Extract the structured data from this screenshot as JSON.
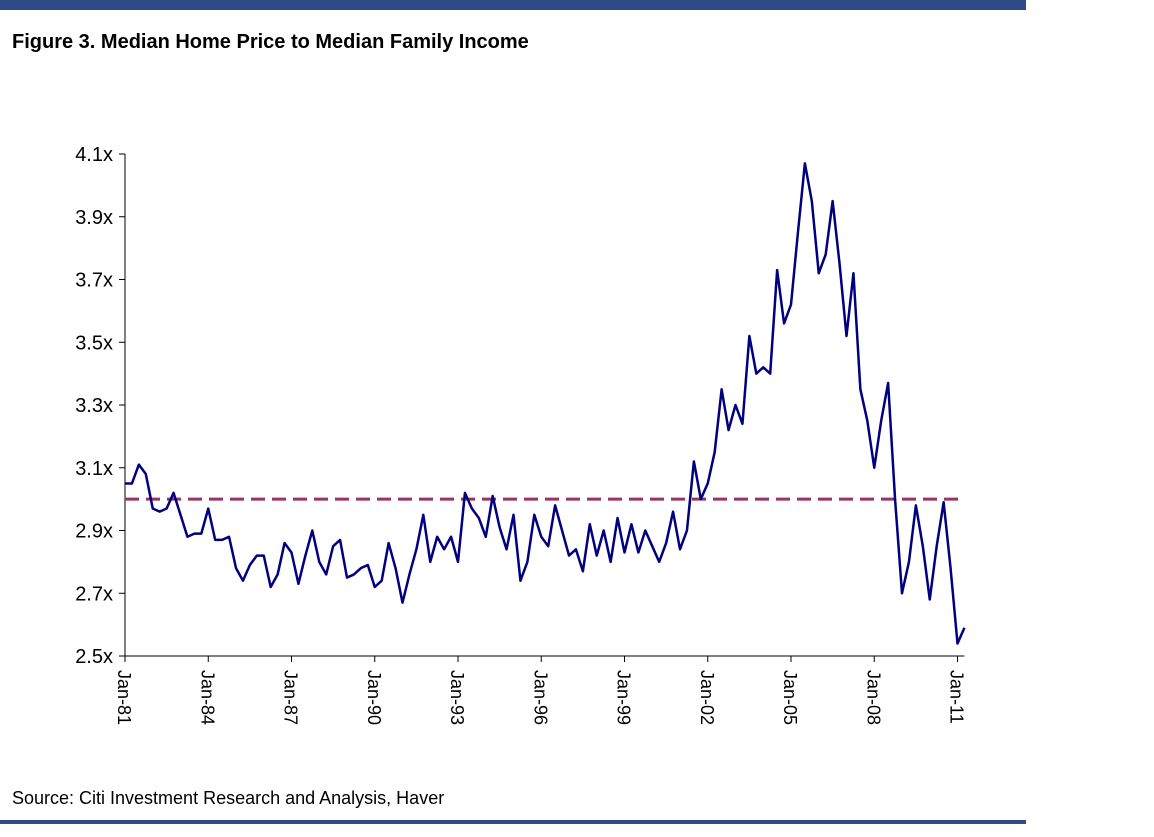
{
  "chart_data": {
    "type": "line",
    "title": "Figure 3. Median Home Price to Median Family Income",
    "source": "Source: Citi Investment Research and Analysis, Haver",
    "x": [
      "1981-01",
      "1981-04",
      "1981-07",
      "1981-10",
      "1982-01",
      "1982-04",
      "1982-07",
      "1982-10",
      "1983-01",
      "1983-04",
      "1983-07",
      "1983-10",
      "1984-01",
      "1984-04",
      "1984-07",
      "1984-10",
      "1985-01",
      "1985-04",
      "1985-07",
      "1985-10",
      "1986-01",
      "1986-04",
      "1986-07",
      "1986-10",
      "1987-01",
      "1987-04",
      "1987-07",
      "1987-10",
      "1988-01",
      "1988-04",
      "1988-07",
      "1988-10",
      "1989-01",
      "1989-04",
      "1989-07",
      "1989-10",
      "1990-01",
      "1990-04",
      "1990-07",
      "1990-10",
      "1991-01",
      "1991-04",
      "1991-07",
      "1991-10",
      "1992-01",
      "1992-04",
      "1992-07",
      "1992-10",
      "1993-01",
      "1993-04",
      "1993-07",
      "1993-10",
      "1994-01",
      "1994-04",
      "1994-07",
      "1994-10",
      "1995-01",
      "1995-04",
      "1995-07",
      "1995-10",
      "1996-01",
      "1996-04",
      "1996-07",
      "1996-10",
      "1997-01",
      "1997-04",
      "1997-07",
      "1997-10",
      "1998-01",
      "1998-04",
      "1998-07",
      "1998-10",
      "1999-01",
      "1999-04",
      "1999-07",
      "1999-10",
      "2000-01",
      "2000-04",
      "2000-07",
      "2000-10",
      "2001-01",
      "2001-04",
      "2001-07",
      "2001-10",
      "2002-01",
      "2002-04",
      "2002-07",
      "2002-10",
      "2003-01",
      "2003-04",
      "2003-07",
      "2003-10",
      "2004-01",
      "2004-04",
      "2004-07",
      "2004-10",
      "2005-01",
      "2005-04",
      "2005-07",
      "2005-10",
      "2006-01",
      "2006-04",
      "2006-07",
      "2006-10",
      "2007-01",
      "2007-04",
      "2007-07",
      "2007-10",
      "2008-01",
      "2008-04",
      "2008-07",
      "2008-10",
      "2009-01",
      "2009-04",
      "2009-07",
      "2009-10",
      "2010-01",
      "2010-04",
      "2010-07",
      "2010-10",
      "2011-01",
      "2011-04"
    ],
    "series": [
      {
        "name": "Median Home Price to Median Family Income",
        "color": "#000080",
        "values": [
          3.05,
          3.05,
          3.11,
          3.08,
          2.97,
          2.96,
          2.97,
          3.02,
          2.95,
          2.88,
          2.89,
          2.89,
          2.97,
          2.87,
          2.87,
          2.88,
          2.78,
          2.74,
          2.79,
          2.82,
          2.82,
          2.72,
          2.76,
          2.86,
          2.83,
          2.73,
          2.82,
          2.9,
          2.8,
          2.76,
          2.85,
          2.87,
          2.75,
          2.76,
          2.78,
          2.79,
          2.72,
          2.74,
          2.86,
          2.78,
          2.67,
          2.76,
          2.84,
          2.95,
          2.8,
          2.88,
          2.84,
          2.88,
          2.8,
          3.02,
          2.97,
          2.94,
          2.88,
          3.01,
          2.91,
          2.84,
          2.95,
          2.74,
          2.8,
          2.95,
          2.88,
          2.85,
          2.98,
          2.9,
          2.82,
          2.84,
          2.77,
          2.92,
          2.82,
          2.9,
          2.8,
          2.94,
          2.83,
          2.92,
          2.83,
          2.9,
          2.85,
          2.8,
          2.86,
          2.96,
          2.84,
          2.9,
          3.12,
          3.0,
          3.05,
          3.15,
          3.35,
          3.22,
          3.3,
          3.24,
          3.52,
          3.4,
          3.42,
          3.4,
          3.73,
          3.56,
          3.62,
          3.85,
          4.07,
          3.95,
          3.72,
          3.78,
          3.95,
          3.75,
          3.52,
          3.72,
          3.35,
          3.25,
          3.1,
          3.25,
          3.37,
          3.0,
          2.7,
          2.8,
          2.98,
          2.85,
          2.68,
          2.85,
          2.99,
          2.78,
          2.54,
          2.59
        ]
      }
    ],
    "reference_line": {
      "value": 3.0,
      "color": "#993366",
      "style": "dashed"
    },
    "xlim": [
      "1981-01",
      "2011-04"
    ],
    "xticks": [
      {
        "value": "1981-01",
        "label": "Jan-81"
      },
      {
        "value": "1984-01",
        "label": "Jan-84"
      },
      {
        "value": "1987-01",
        "label": "Jan-87"
      },
      {
        "value": "1990-01",
        "label": "Jan-90"
      },
      {
        "value": "1993-01",
        "label": "Jan-93"
      },
      {
        "value": "1996-01",
        "label": "Jan-96"
      },
      {
        "value": "1999-01",
        "label": "Jan-99"
      },
      {
        "value": "2002-01",
        "label": "Jan-02"
      },
      {
        "value": "2005-01",
        "label": "Jan-05"
      },
      {
        "value": "2008-01",
        "label": "Jan-08"
      },
      {
        "value": "2011-01",
        "label": "Jan-11"
      }
    ],
    "ylim": [
      2.5,
      4.1
    ],
    "yticks": [
      {
        "value": 2.5,
        "label": "2.5x"
      },
      {
        "value": 2.7,
        "label": "2.7x"
      },
      {
        "value": 2.9,
        "label": "2.9x"
      },
      {
        "value": 3.1,
        "label": "3.1x"
      },
      {
        "value": 3.3,
        "label": "3.3x"
      },
      {
        "value": 3.5,
        "label": "3.5x"
      },
      {
        "value": 3.7,
        "label": "3.7x"
      },
      {
        "value": 3.9,
        "label": "3.9x"
      },
      {
        "value": 4.1,
        "label": "4.1x"
      }
    ],
    "grid": false
  }
}
